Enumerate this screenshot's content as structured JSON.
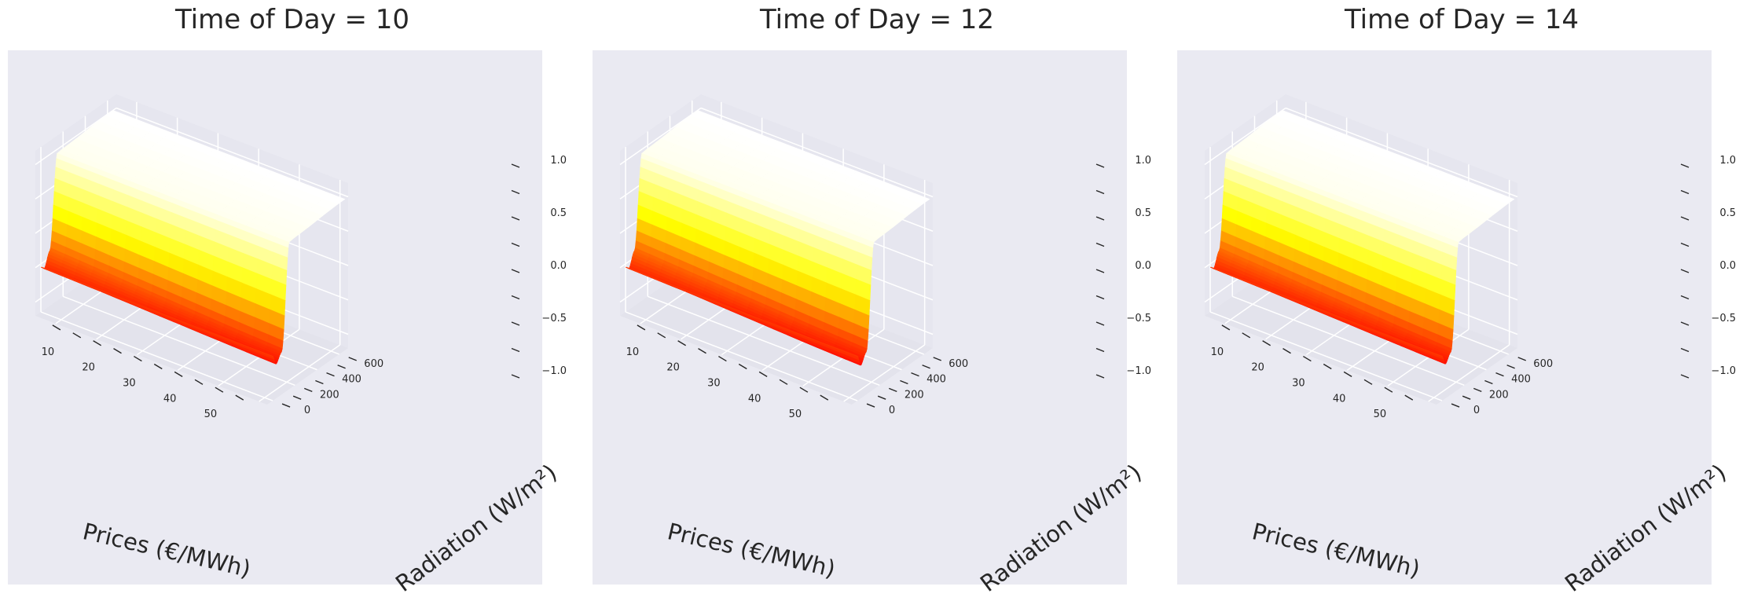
{
  "chart_data": [
    {
      "type": "surface3d",
      "title": "Time of Day = 10",
      "xlabel": "Prices (€/MWh)",
      "ylabel": "Radiation (W/m²)",
      "zlabel": "",
      "x_ticks": [
        "10",
        "20",
        "30",
        "40",
        "50"
      ],
      "y_ticks": [
        "0",
        "200",
        "400",
        "600"
      ],
      "z_ticks": [
        "−1.0",
        "−0.5",
        "0.0",
        "0.5",
        "1.0"
      ],
      "xlim": [
        5,
        62
      ],
      "ylim": [
        -50,
        680
      ],
      "zlim": [
        -1.2,
        1.2
      ],
      "grid": true,
      "colormap": "autumn",
      "surface": {
        "x": [
          5,
          20,
          35,
          50,
          62
        ],
        "y": [
          0,
          30,
          80,
          150,
          650
        ],
        "z": [
          [
            -0.55,
            -0.55,
            -0.55,
            -0.55,
            -0.55
          ],
          [
            -0.6,
            -0.62,
            -0.65,
            -0.68,
            -0.7
          ],
          [
            -0.4,
            -0.45,
            -0.5,
            -0.55,
            -0.58
          ],
          [
            0.95,
            0.95,
            0.95,
            0.95,
            0.95
          ],
          [
            1.0,
            1.0,
            1.0,
            1.0,
            1.0
          ]
        ]
      }
    },
    {
      "type": "surface3d",
      "title": "Time of Day = 12",
      "xlabel": "Prices (€/MWh)",
      "ylabel": "Radiation (W/m²)",
      "zlabel": "",
      "x_ticks": [
        "10",
        "20",
        "30",
        "40",
        "50"
      ],
      "y_ticks": [
        "0",
        "200",
        "400",
        "600"
      ],
      "z_ticks": [
        "−1.0",
        "−0.5",
        "0.0",
        "0.5",
        "1.0"
      ],
      "xlim": [
        5,
        62
      ],
      "ylim": [
        -50,
        680
      ],
      "zlim": [
        -1.2,
        1.2
      ],
      "grid": true,
      "colormap": "autumn",
      "surface": {
        "x": [
          5,
          20,
          35,
          50,
          62
        ],
        "y": [
          0,
          30,
          80,
          150,
          650
        ],
        "z": [
          [
            -0.55,
            -0.55,
            -0.55,
            -0.55,
            -0.55
          ],
          [
            -0.6,
            -0.62,
            -0.66,
            -0.7,
            -0.72
          ],
          [
            -0.4,
            -0.45,
            -0.5,
            -0.55,
            -0.58
          ],
          [
            0.95,
            0.95,
            0.95,
            0.95,
            0.95
          ],
          [
            1.0,
            1.0,
            1.0,
            1.0,
            1.0
          ]
        ]
      }
    },
    {
      "type": "surface3d",
      "title": "Time of Day = 14",
      "xlabel": "Prices (€/MWh)",
      "ylabel": "Radiation (W/m²)",
      "zlabel": "",
      "x_ticks": [
        "10",
        "20",
        "30",
        "40",
        "50"
      ],
      "y_ticks": [
        "0",
        "200",
        "400",
        "600"
      ],
      "z_ticks": [
        "−1.0",
        "−0.5",
        "0.0",
        "0.5",
        "1.0"
      ],
      "xlim": [
        5,
        62
      ],
      "ylim": [
        -50,
        680
      ],
      "zlim": [
        -1.2,
        1.2
      ],
      "grid": true,
      "colormap": "autumn",
      "surface": {
        "x": [
          5,
          20,
          35,
          50,
          62
        ],
        "y": [
          0,
          30,
          80,
          150,
          650
        ],
        "z": [
          [
            -0.55,
            -0.55,
            -0.55,
            -0.55,
            -0.55
          ],
          [
            -0.6,
            -0.62,
            -0.65,
            -0.68,
            -0.7
          ],
          [
            -0.4,
            -0.45,
            -0.5,
            -0.55,
            -0.58
          ],
          [
            0.95,
            0.95,
            0.95,
            0.95,
            0.95
          ],
          [
            1.0,
            1.0,
            1.0,
            1.0,
            1.0
          ]
        ]
      }
    }
  ]
}
